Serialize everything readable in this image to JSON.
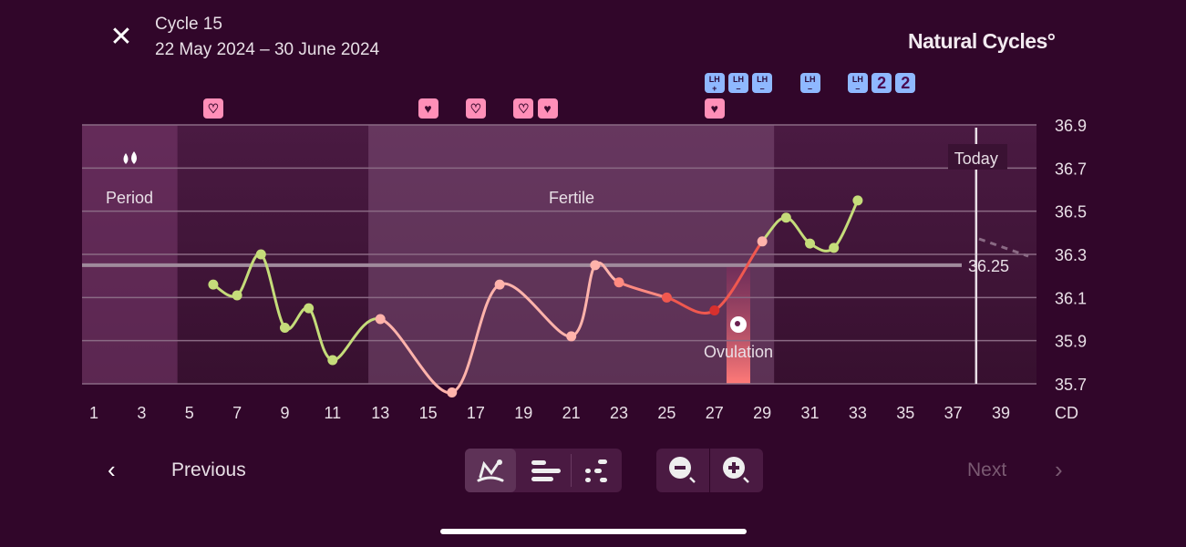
{
  "header": {
    "title": "Cycle 15",
    "date_range": "22 May 2024 – 30 June 2024",
    "brand": "Natural Cycles°",
    "close_icon": "close-icon"
  },
  "markers": {
    "hearts": [
      {
        "day": 6,
        "type": "outline"
      },
      {
        "day": 15,
        "type": "filled"
      },
      {
        "day": 17,
        "type": "outline"
      },
      {
        "day": 19,
        "type": "outline"
      },
      {
        "day": 20,
        "type": "filled"
      },
      {
        "day": 27,
        "type": "filled"
      }
    ],
    "lh_tests": [
      {
        "day": 27,
        "label": "LH",
        "result": "+"
      },
      {
        "day": 28,
        "label": "LH",
        "result": "–"
      },
      {
        "day": 29,
        "label": "LH",
        "result": "–"
      },
      {
        "day": 31,
        "label": "LH",
        "result": "–"
      },
      {
        "day": 33,
        "label": "LH",
        "result": "–"
      }
    ],
    "counts": [
      {
        "day": 34,
        "label": "2"
      },
      {
        "day": 35,
        "label": "2"
      }
    ]
  },
  "chart_data": {
    "type": "line",
    "xlabel": "CD",
    "x_ticks": [
      1,
      3,
      5,
      7,
      9,
      11,
      13,
      15,
      17,
      19,
      21,
      23,
      25,
      27,
      29,
      31,
      33,
      35,
      37,
      39
    ],
    "y_ticks": [
      36.9,
      36.7,
      36.5,
      36.3,
      36.1,
      35.9,
      35.7
    ],
    "ylim": [
      35.7,
      36.9
    ],
    "xlim": [
      1,
      39
    ],
    "grid": true,
    "points": [
      {
        "day": 6,
        "temp": 36.16,
        "phase": "green"
      },
      {
        "day": 7,
        "temp": 36.11,
        "phase": "green"
      },
      {
        "day": 8,
        "temp": 36.3,
        "phase": "green"
      },
      {
        "day": 9,
        "temp": 35.96,
        "phase": "green"
      },
      {
        "day": 10,
        "temp": 36.05,
        "phase": "green"
      },
      {
        "day": 11,
        "temp": 35.81,
        "phase": "green"
      },
      {
        "day": 13,
        "temp": 36.0,
        "phase": "pink"
      },
      {
        "day": 16,
        "temp": 35.66,
        "phase": "pink"
      },
      {
        "day": 18,
        "temp": 36.16,
        "phase": "pink"
      },
      {
        "day": 21,
        "temp": 35.92,
        "phase": "pink"
      },
      {
        "day": 22,
        "temp": 36.25,
        "phase": "pink"
      },
      {
        "day": 23,
        "temp": 36.17,
        "phase": "salmon"
      },
      {
        "day": 25,
        "temp": 36.1,
        "phase": "red"
      },
      {
        "day": 27,
        "temp": 36.04,
        "phase": "darkred"
      },
      {
        "day": 29,
        "temp": 36.36,
        "phase": "pink"
      },
      {
        "day": 30,
        "temp": 36.47,
        "phase": "green"
      },
      {
        "day": 31,
        "temp": 36.35,
        "phase": "green"
      },
      {
        "day": 32,
        "temp": 36.33,
        "phase": "green"
      },
      {
        "day": 33,
        "temp": 36.55,
        "phase": "green"
      }
    ],
    "coverline": {
      "value": 36.25,
      "label": "36.25"
    },
    "period": {
      "start": 1,
      "end": 4,
      "label": "Period",
      "icon": "drops-icon"
    },
    "fertile": {
      "start": 12.5,
      "end": 29.5,
      "label": "Fertile"
    },
    "ovulation": {
      "day": 28,
      "label": "Ovulation",
      "icon": "egg-icon"
    },
    "today": {
      "day": 38,
      "label": "Today"
    },
    "colors": {
      "green": "#c5dc7a",
      "pink": "#ffb3ab",
      "salmon": "#ff8a80",
      "red": "#f0584f",
      "darkred": "#d8302e"
    }
  },
  "footer": {
    "previous": "Previous",
    "next": "Next",
    "views": [
      "line-chart-icon",
      "bars-icon",
      "dots-icon"
    ],
    "zoom_out": "zoom-out-icon",
    "zoom_in": "zoom-in-icon"
  }
}
